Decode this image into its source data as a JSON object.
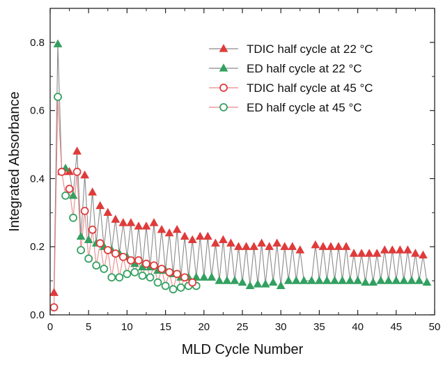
{
  "chart_data": {
    "type": "scatter",
    "xlabel": "MLD Cycle Number",
    "ylabel": "Integrated Absorbance",
    "xlim": [
      0,
      50
    ],
    "ylim": [
      0,
      0.9
    ],
    "x_ticks": [
      0,
      5,
      10,
      15,
      20,
      25,
      30,
      35,
      40,
      45,
      50
    ],
    "y_ticks": [
      0.0,
      0.2,
      0.4,
      0.6,
      0.8
    ],
    "x_tick_labels": [
      "0",
      "5",
      "10",
      "15",
      "20",
      "25",
      "30",
      "35",
      "40",
      "45",
      "50"
    ],
    "y_tick_labels": [
      "0.0",
      "0.2",
      "0.4",
      "0.6",
      "0.8"
    ],
    "grid": false,
    "legend_position": "top-right",
    "colors": {
      "tdic": "#e03a3a",
      "ed": "#33a060",
      "line_22": "#8a8a8a",
      "line_45": "#e88888"
    },
    "series": [
      {
        "name": "TDIC half cycle at 22 °C",
        "marker": "filled-triangle",
        "color": "#e03a3a",
        "x": [
          0.5,
          1.5,
          2.5,
          3.5,
          4.5,
          5.5,
          6.5,
          7.5,
          8.5,
          9.5,
          10.5,
          11.5,
          12.5,
          13.5,
          14.5,
          15.5,
          16.5,
          17.5,
          18.5,
          19.5,
          20.5,
          21.5,
          22.5,
          23.5,
          24.5,
          25.5,
          26.5,
          27.5,
          28.5,
          29.5,
          30.5,
          31.5,
          32.5,
          34.5,
          35.5,
          36.5,
          37.5,
          38.5,
          39.5,
          40.5,
          41.5,
          42.5,
          43.5,
          44.5,
          45.5,
          46.5,
          47.5,
          48.5
        ],
        "y": [
          0.065,
          0.42,
          0.42,
          0.48,
          0.41,
          0.36,
          0.32,
          0.3,
          0.28,
          0.27,
          0.27,
          0.26,
          0.26,
          0.27,
          0.25,
          0.24,
          0.25,
          0.23,
          0.22,
          0.23,
          0.23,
          0.21,
          0.22,
          0.21,
          0.2,
          0.2,
          0.2,
          0.21,
          0.2,
          0.21,
          0.2,
          0.2,
          0.19,
          0.205,
          0.2,
          0.2,
          0.2,
          0.2,
          0.18,
          0.18,
          0.18,
          0.18,
          0.19,
          0.19,
          0.19,
          0.19,
          0.18,
          0.175
        ]
      },
      {
        "name": "ED half cycle at 22 °C",
        "marker": "filled-triangle",
        "color": "#33a060",
        "x": [
          1,
          2,
          3,
          4,
          5,
          6,
          7,
          8,
          9,
          10,
          11,
          12,
          13,
          14,
          15,
          16,
          17,
          18,
          19,
          20,
          21,
          22,
          23,
          24,
          25,
          26,
          27,
          28,
          29,
          30,
          31,
          32,
          33,
          34,
          35,
          36,
          37,
          38,
          39,
          40,
          41,
          42,
          43,
          44,
          45,
          46,
          47,
          48,
          49
        ],
        "y": [
          0.795,
          0.43,
          0.35,
          0.23,
          0.22,
          0.21,
          0.2,
          0.19,
          0.18,
          0.17,
          0.15,
          0.14,
          0.14,
          0.13,
          0.13,
          0.12,
          0.11,
          0.11,
          0.11,
          0.11,
          0.11,
          0.1,
          0.1,
          0.1,
          0.095,
          0.085,
          0.09,
          0.09,
          0.095,
          0.085,
          0.1,
          0.1,
          0.1,
          0.1,
          0.1,
          0.1,
          0.1,
          0.1,
          0.1,
          0.1,
          0.095,
          0.095,
          0.1,
          0.1,
          0.1,
          0.1,
          0.1,
          0.1,
          0.095
        ]
      },
      {
        "name": "TDIC half cycle at 45 °C",
        "marker": "open-circle",
        "color": "#e03a3a",
        "x": [
          0.5,
          1.5,
          2.5,
          3.5,
          4.5,
          5.5,
          6.5,
          7.5,
          8.5,
          9.5,
          10.5,
          11.5,
          12.5,
          13.5,
          14.5,
          15.5,
          16.5,
          17.5,
          18.5
        ],
        "y": [
          0.022,
          0.42,
          0.37,
          0.42,
          0.305,
          0.25,
          0.21,
          0.19,
          0.18,
          0.17,
          0.16,
          0.16,
          0.15,
          0.145,
          0.135,
          0.125,
          0.12,
          0.11,
          0.095
        ]
      },
      {
        "name": "ED half cycle at 45 °C",
        "marker": "open-circle",
        "color": "#33a060",
        "x": [
          1,
          2,
          3,
          4,
          5,
          6,
          7,
          8,
          9,
          10,
          11,
          12,
          13,
          14,
          15,
          16,
          17,
          18,
          19
        ],
        "y": [
          0.64,
          0.35,
          0.285,
          0.19,
          0.165,
          0.145,
          0.135,
          0.11,
          0.11,
          0.12,
          0.125,
          0.115,
          0.11,
          0.095,
          0.085,
          0.075,
          0.08,
          0.085,
          0.085
        ]
      }
    ]
  }
}
